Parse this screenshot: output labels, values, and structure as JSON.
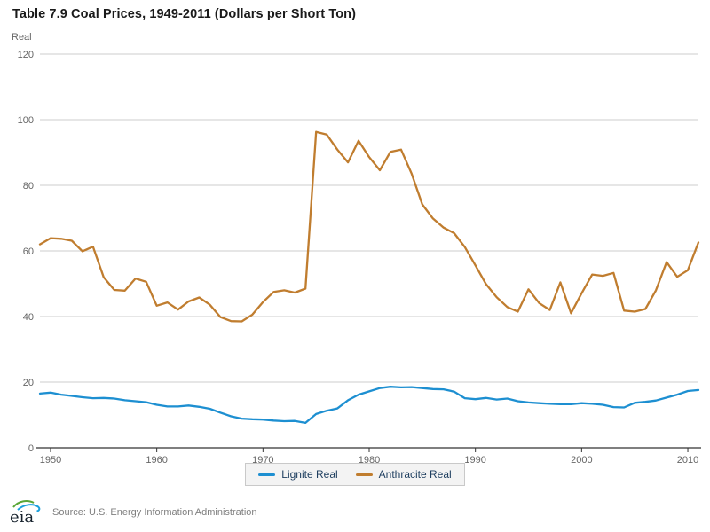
{
  "title": "Table 7.9 Coal Prices, 1949-2011 (Dollars per Short Ton)",
  "logo_text": "eia",
  "source": "Source: U.S. Energy Information Administration",
  "colors": {
    "lignite": "#1d8fd1",
    "anthracite": "#c07d2f",
    "gridline": "#cccccc",
    "axis": "#333333",
    "tick_label": "#666666",
    "legend_text": "#1f3f60",
    "legend_bg": "#f3f3f3",
    "legend_border": "#c9c9c9",
    "logo_green": "#5aa637",
    "logo_blue": "#1aa0dc"
  },
  "chart_data": {
    "type": "line",
    "title": "Table 7.9 Coal Prices, 1949-2011 (Dollars per Short Ton)",
    "y_label": "Real",
    "x_label": "",
    "grid": "horizontal",
    "legend_position": "bottom-center",
    "x_range": [
      1949,
      2011
    ],
    "y_range": [
      0,
      120
    ],
    "x_ticks": [
      1950,
      1960,
      1970,
      1980,
      1990,
      2000,
      2010
    ],
    "y_ticks": [
      0,
      20,
      40,
      60,
      80,
      100,
      120
    ],
    "x": [
      1949,
      1950,
      1951,
      1952,
      1953,
      1954,
      1955,
      1956,
      1957,
      1958,
      1959,
      1960,
      1961,
      1962,
      1963,
      1964,
      1965,
      1966,
      1967,
      1968,
      1969,
      1970,
      1971,
      1972,
      1973,
      1974,
      1975,
      1976,
      1977,
      1978,
      1979,
      1980,
      1981,
      1982,
      1983,
      1984,
      1985,
      1986,
      1987,
      1988,
      1989,
      1990,
      1991,
      1992,
      1993,
      1994,
      1995,
      1996,
      1997,
      1998,
      1999,
      2000,
      2001,
      2002,
      2003,
      2004,
      2005,
      2006,
      2007,
      2008,
      2009,
      2010,
      2011
    ],
    "series": [
      {
        "name": "Lignite Real",
        "color": "#1d8fd1",
        "values": [
          16.5,
          16.8,
          16.2,
          15.8,
          15.4,
          15.1,
          15.2,
          15.0,
          14.5,
          14.2,
          13.9,
          13.1,
          12.6,
          12.6,
          12.9,
          12.5,
          11.9,
          10.7,
          9.6,
          8.9,
          8.7,
          8.6,
          8.3,
          8.1,
          8.2,
          7.6,
          10.3,
          11.3,
          12.0,
          14.5,
          16.2,
          17.2,
          18.2,
          18.6,
          18.4,
          18.5,
          18.2,
          17.9,
          17.8,
          17.1,
          15.1,
          14.8,
          15.2,
          14.7,
          15.0,
          14.2,
          13.8,
          13.6,
          13.4,
          13.3,
          13.3,
          13.6,
          13.4,
          13.1,
          12.4,
          12.3,
          13.7,
          14.0,
          14.4,
          15.3,
          16.2,
          17.3,
          17.6
        ]
      },
      {
        "name": "Anthracite Real",
        "color": "#c07d2f",
        "values": [
          62.0,
          63.9,
          63.7,
          63.1,
          59.9,
          61.3,
          52.0,
          48.1,
          47.9,
          51.6,
          50.6,
          43.3,
          44.3,
          42.1,
          44.6,
          45.8,
          43.6,
          39.8,
          38.6,
          38.5,
          40.6,
          44.4,
          47.5,
          48.0,
          47.3,
          48.5,
          96.3,
          95.5,
          90.9,
          87.0,
          93.6,
          88.6,
          84.6,
          90.2,
          90.9,
          83.5,
          74.2,
          69.9,
          67.1,
          65.4,
          61.2,
          55.6,
          49.9,
          45.9,
          42.9,
          41.5,
          48.3,
          44.1,
          42.0,
          50.4,
          41.0,
          47.1,
          52.8,
          52.4,
          53.3,
          41.8,
          41.5,
          42.3,
          48.0,
          56.6,
          52.1,
          54.1,
          62.6
        ]
      }
    ]
  }
}
